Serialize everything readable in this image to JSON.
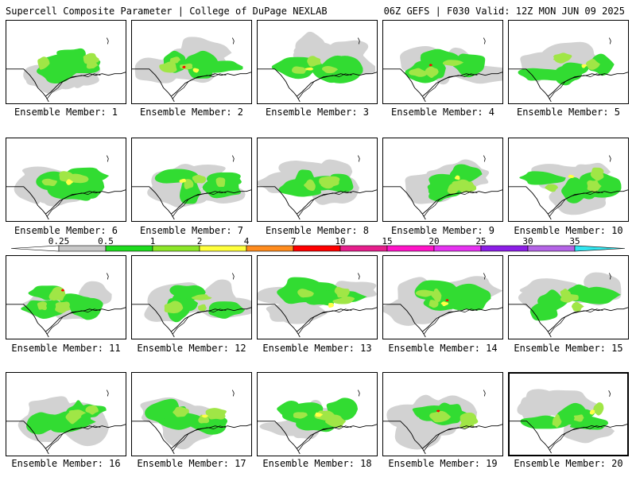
{
  "header": {
    "left": "Supercell Composite Parameter | College of DuPage NEXLAB",
    "right": "06Z GEFS | F030 Valid: 12Z MON JUN 09 2025"
  },
  "panels": [
    {
      "label": "Ensemble Member: 1"
    },
    {
      "label": "Ensemble Member: 2"
    },
    {
      "label": "Ensemble Member: 3"
    },
    {
      "label": "Ensemble Member: 4"
    },
    {
      "label": "Ensemble Member: 5"
    },
    {
      "label": "Ensemble Member: 6"
    },
    {
      "label": "Ensemble Member: 7"
    },
    {
      "label": "Ensemble Member: 8"
    },
    {
      "label": "Ensemble Member: 9"
    },
    {
      "label": "Ensemble Member: 10"
    },
    {
      "label": "Ensemble Member: 11"
    },
    {
      "label": "Ensemble Member: 12"
    },
    {
      "label": "Ensemble Member: 13"
    },
    {
      "label": "Ensemble Member: 14"
    },
    {
      "label": "Ensemble Member: 15"
    },
    {
      "label": "Ensemble Member: 16"
    },
    {
      "label": "Ensemble Member: 17"
    },
    {
      "label": "Ensemble Member: 18"
    },
    {
      "label": "Ensemble Member: 19"
    },
    {
      "label": "Ensemble Member: 20"
    }
  ],
  "colorbar": {
    "labels": [
      "0.25",
      "0.5",
      "1",
      "2",
      "4",
      "7",
      "10",
      "15",
      "20",
      "25",
      "30",
      "35"
    ],
    "colors": [
      "#c8c8c8",
      "#1edc1e",
      "#8ce628",
      "#ffff3c",
      "#ff8c1e",
      "#ff0000",
      "#e61e8c",
      "#ff14c8",
      "#e632f0",
      "#8c1ee6",
      "#b464e6",
      "#32e6f0"
    ]
  },
  "legend_colors": {
    "low": "#d2d2d2",
    "green": "#32dc32",
    "yellow_green": "#a0e646",
    "yellow": "#ffff46",
    "red": "#ff0000",
    "coast": "#000000"
  }
}
